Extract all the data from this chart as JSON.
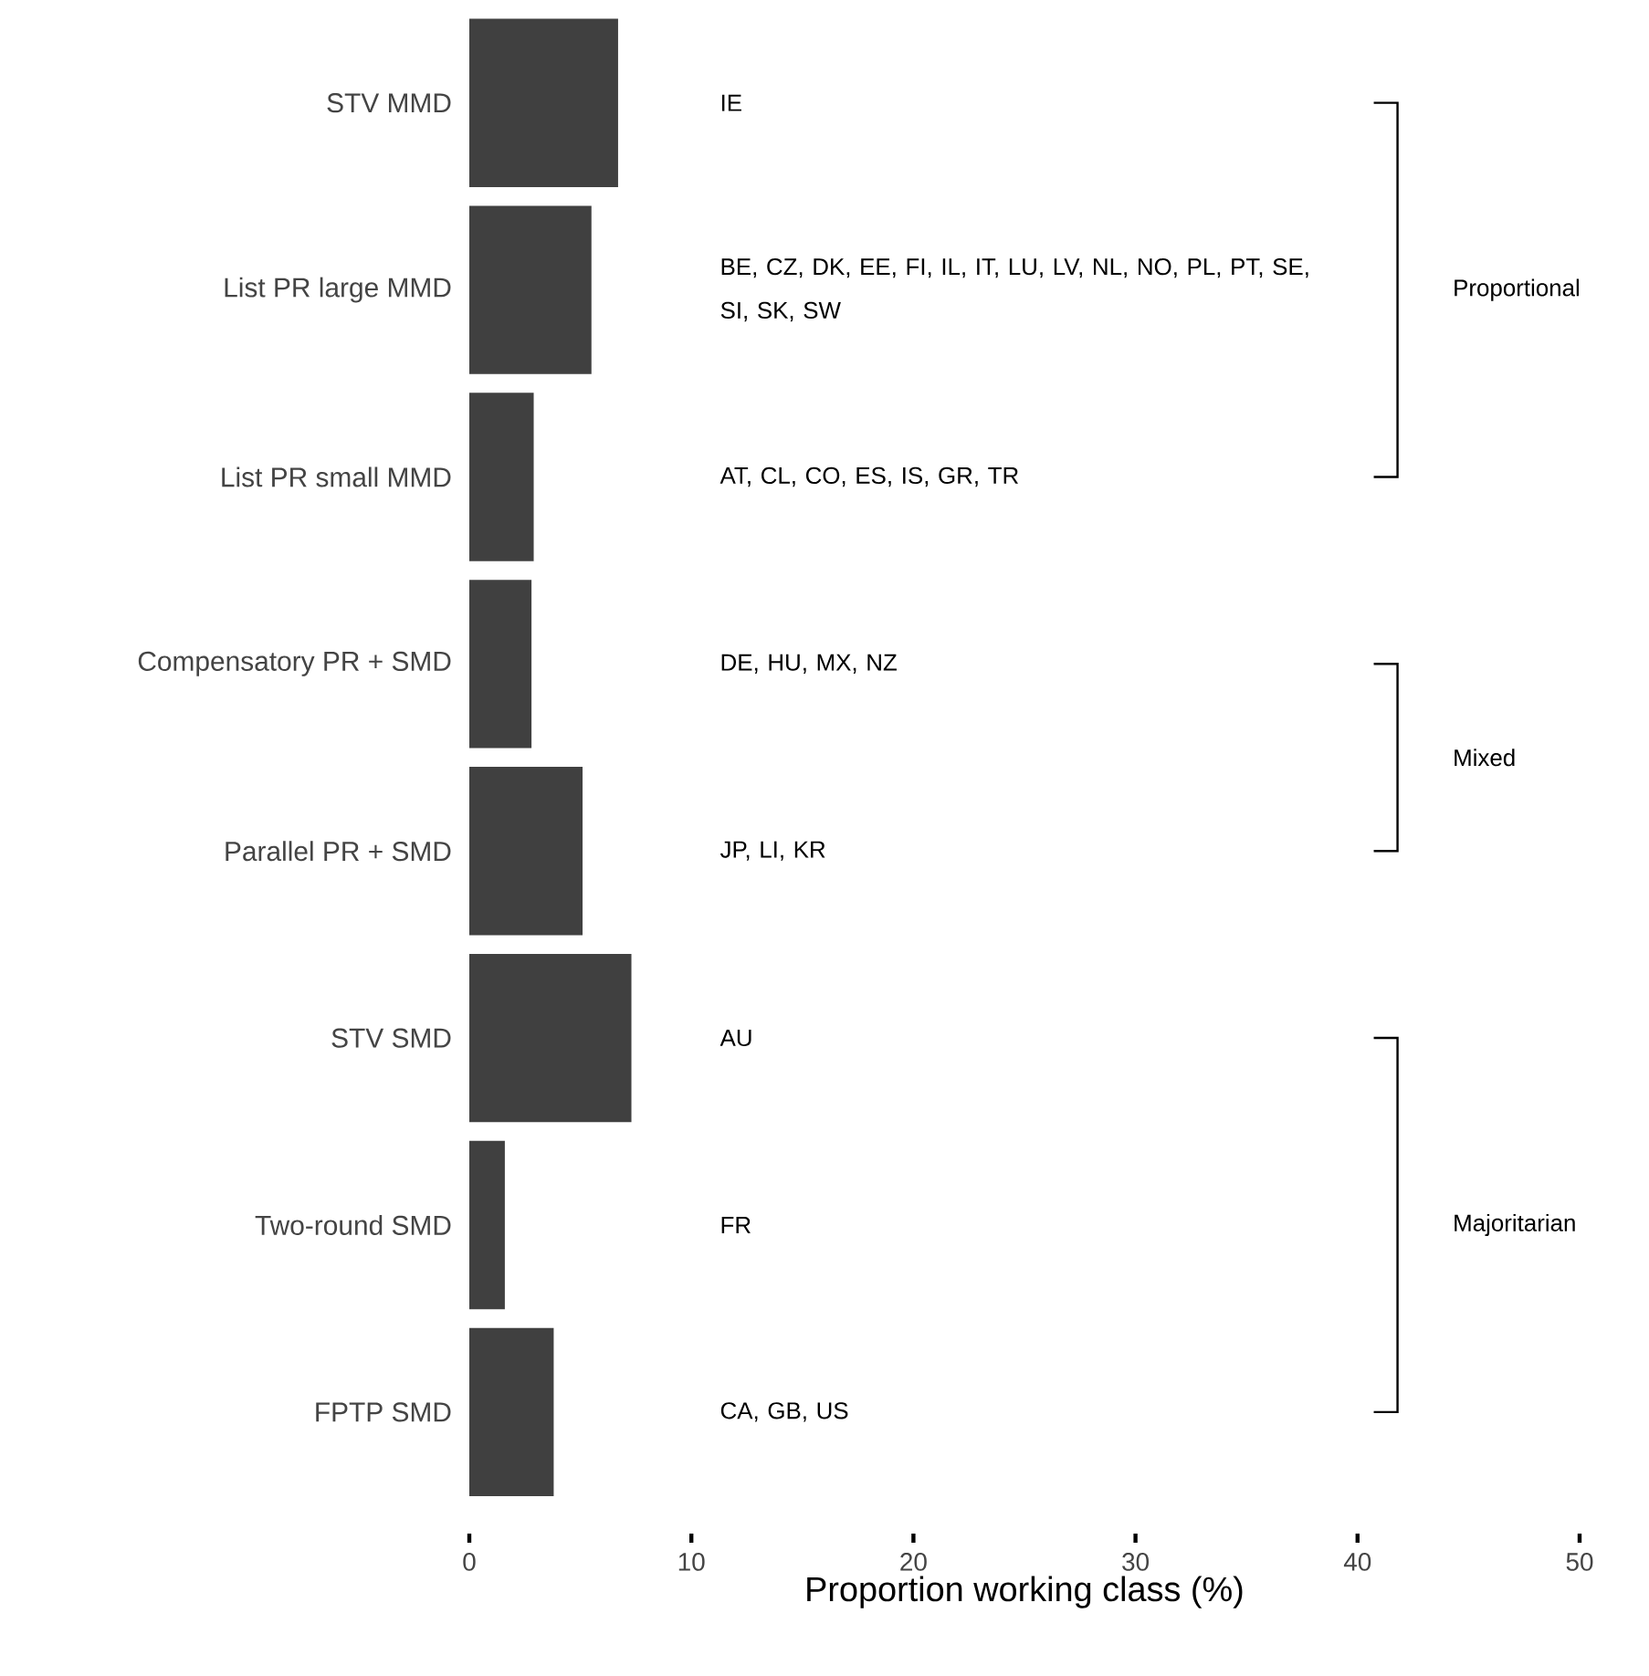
{
  "chart_data": {
    "type": "bar",
    "orientation": "horizontal",
    "categories": [
      "STV MMD",
      "List PR large MMD",
      "List PR small MMD",
      "Compensatory PR + SMD",
      "Parallel PR + SMD",
      "STV SMD",
      "Two-round SMD",
      "FPTP SMD"
    ],
    "values": [
      6.7,
      5.5,
      2.9,
      2.8,
      5.1,
      7.3,
      1.6,
      3.8
    ],
    "color": "#404040",
    "xlabel": "Proportion working class (%)",
    "xlim": [
      0,
      50
    ],
    "xticks": [
      0,
      10,
      20,
      30,
      40,
      50
    ],
    "grid": false,
    "annotations": [
      "IE",
      "BE, CZ, DK, EE, FI, IL, IT, LU, LV, NL, NO, PL, PT, SE, SI, SK, SW",
      "AT, CL, CO, ES, IS, GR, TR",
      "DE, HU, MX, NZ",
      "JP, LI, KR",
      "AU",
      "FR",
      "CA, GB, US",
      "Proportional",
      "Mixed",
      "Majoritarian"
    ]
  }
}
